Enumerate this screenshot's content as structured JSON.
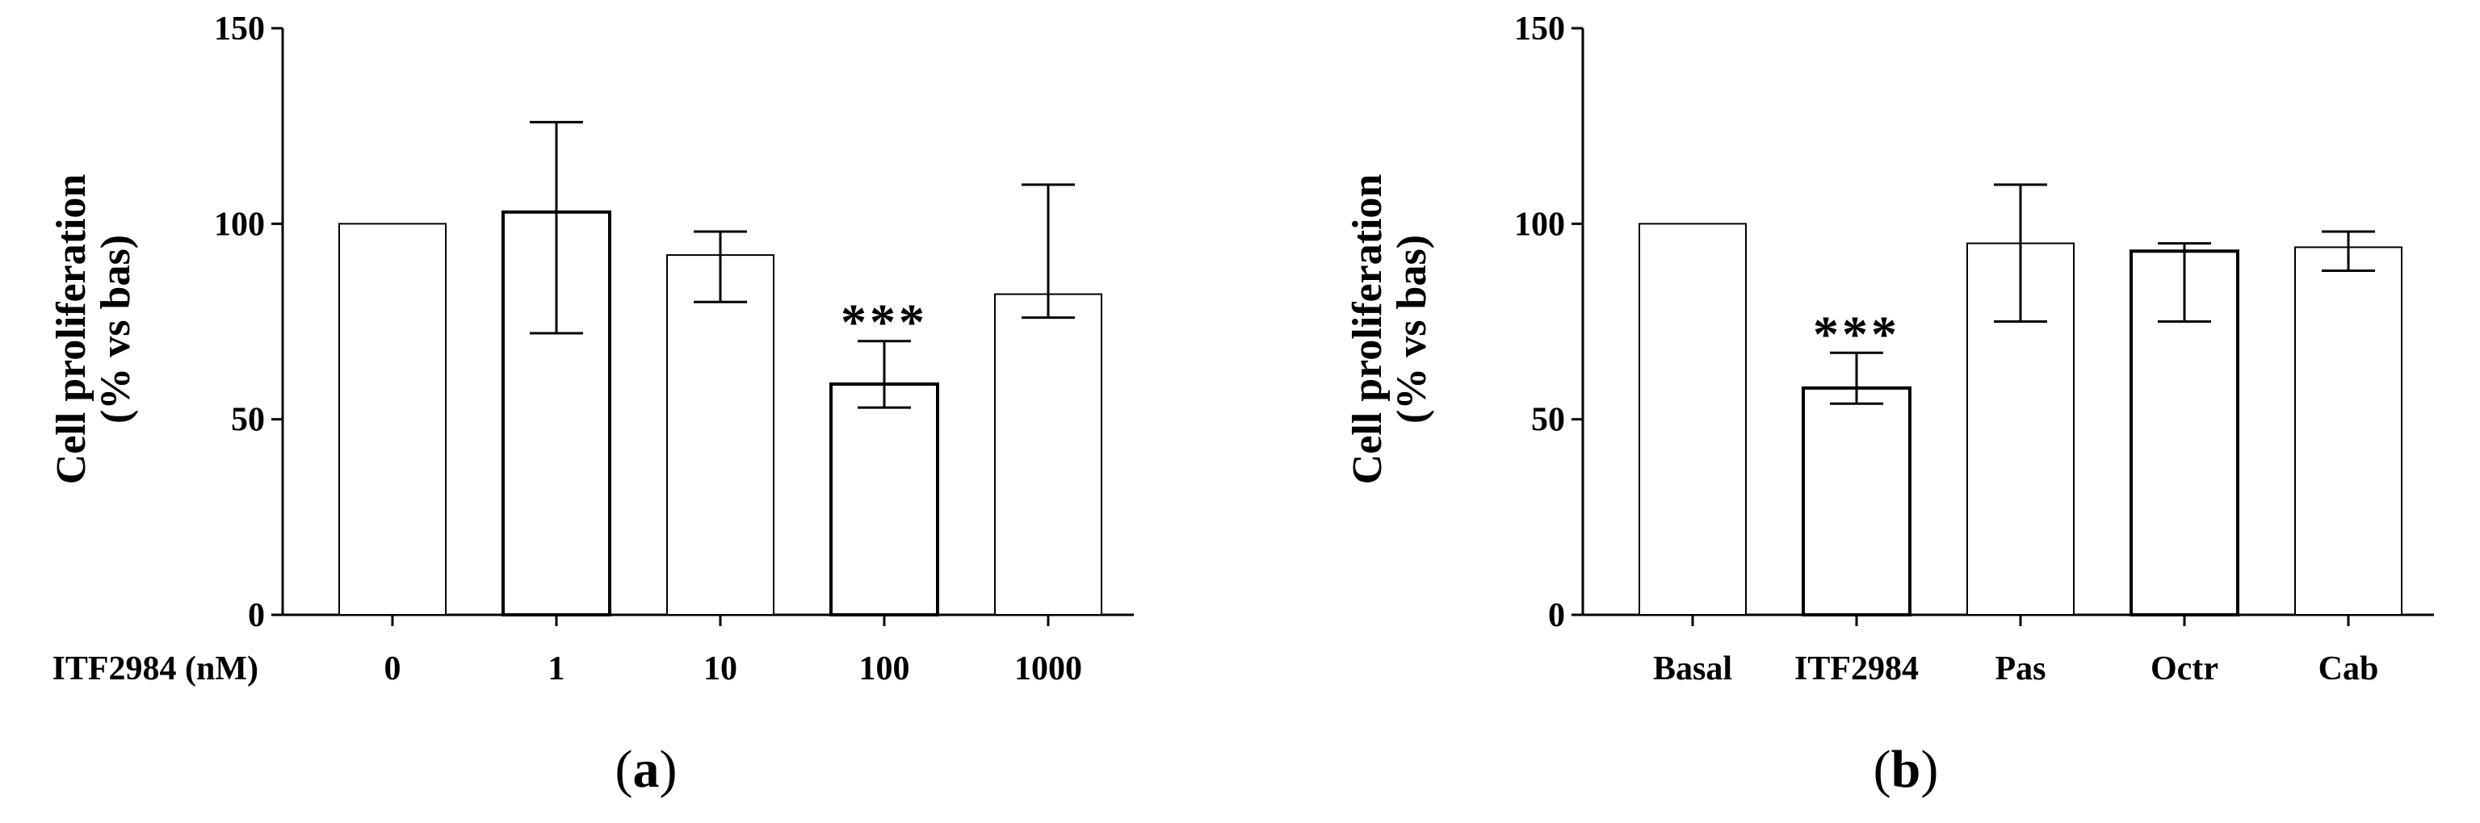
{
  "chart_data": [
    {
      "type": "bar",
      "panel_label": "a",
      "ylabel_line1": "Cell proliferation",
      "ylabel_line2": "(% vs bas)",
      "xaxis_prefix": "ITF2984 (nM)",
      "categories": [
        "0",
        "1",
        "10",
        "100",
        "1000"
      ],
      "values": [
        100,
        103,
        92,
        59,
        82
      ],
      "error_upper": [
        100,
        126,
        98,
        70,
        110
      ],
      "error_lower": [
        100,
        72,
        80,
        53,
        76
      ],
      "annotations": [
        "",
        "",
        "",
        "***",
        ""
      ],
      "yticks": [
        0,
        50,
        100,
        150
      ],
      "ylim": [
        0,
        150
      ],
      "bar_color": "#ffffff",
      "edge_color": "#000000"
    },
    {
      "type": "bar",
      "panel_label": "b",
      "ylabel_line1": "Cell proliferation",
      "ylabel_line2": "(% vs bas)",
      "categories": [
        "Basal",
        "ITF2984",
        "Pas",
        "Octr",
        "Cab"
      ],
      "values": [
        100,
        58,
        95,
        93,
        94
      ],
      "error_upper": [
        100,
        67,
        110,
        95,
        98
      ],
      "error_lower": [
        100,
        54,
        75,
        75,
        88
      ],
      "annotations": [
        "",
        "***",
        "",
        "",
        ""
      ],
      "yticks": [
        0,
        50,
        100,
        150
      ],
      "ylim": [
        0,
        150
      ],
      "bar_color": "#ffffff",
      "edge_color": "#000000"
    }
  ]
}
